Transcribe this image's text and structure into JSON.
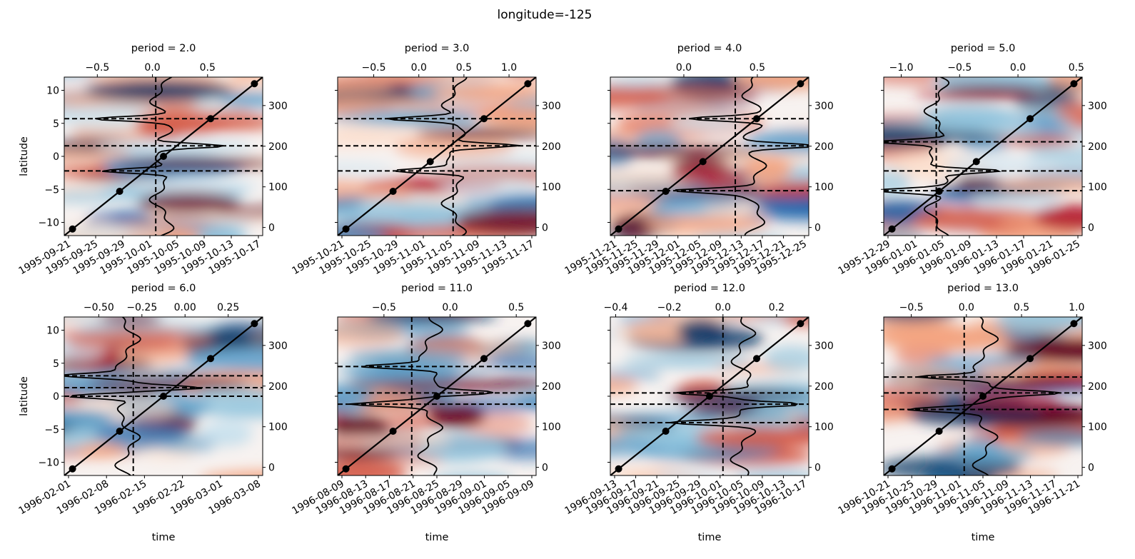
{
  "figure": {
    "suptitle": "longitude=-125",
    "rows": 2,
    "cols": 4,
    "colormap": "RdBu_r",
    "ylabel": "latitude",
    "xlabel": "time"
  },
  "chart_data": [
    {
      "type": "heatmap",
      "title": "period = 2.0",
      "x_ticklabels": [
        "1995-09-21",
        "1995-09-25",
        "1995-09-29",
        "1995-10-01",
        "1995-10-05",
        "1995-10-09",
        "1995-10-13",
        "1995-10-17"
      ],
      "top_ticklabels": [
        "−0.5",
        "0.0",
        "0.5"
      ],
      "top_xlim": [
        -0.8,
        1.0
      ],
      "left_ticklabels": [
        "−10",
        "−5",
        "0",
        "5",
        "10"
      ],
      "ylim": [
        -12,
        12
      ],
      "right_ticklabels": [
        "0",
        "100",
        "200",
        "300"
      ],
      "right_ylim": [
        -20,
        370
      ],
      "ylabel": "latitude",
      "xlabel": "",
      "hlines_lat": [
        5.7,
        1.6,
        -2.2
      ],
      "vline_top": 0.03,
      "markers_lat": [
        -11,
        -5.3,
        0,
        5.7,
        11
      ],
      "seed": 11
    },
    {
      "type": "heatmap",
      "title": "period = 3.0",
      "x_ticklabels": [
        "1995-10-21",
        "1995-10-25",
        "1995-10-29",
        "1995-11-01",
        "1995-11-05",
        "1995-11-09",
        "1995-11-13",
        "1995-11-17"
      ],
      "top_ticklabels": [
        "−0.5",
        "0.0",
        "0.5",
        "1.0"
      ],
      "top_xlim": [
        -0.9,
        1.3
      ],
      "left_ticklabels": [],
      "ylim": [
        -12,
        12
      ],
      "right_ticklabels": [
        "0",
        "100",
        "200",
        "300"
      ],
      "right_ylim": [
        -20,
        370
      ],
      "ylabel": "",
      "xlabel": "",
      "hlines_lat": [
        5.7,
        1.6,
        -2.2
      ],
      "vline_top": 0.38,
      "markers_lat": [
        -11,
        -5.3,
        -0.8,
        5.7,
        11
      ],
      "seed": 23
    },
    {
      "type": "heatmap",
      "title": "period = 4.0",
      "x_ticklabels": [
        "1995-11-21",
        "1995-11-25",
        "1995-11-29",
        "1995-12-01",
        "1995-12-05",
        "1995-12-09",
        "1995-12-13",
        "1995-12-17",
        "1995-12-21",
        "1995-12-25"
      ],
      "top_ticklabels": [
        "0.0",
        "0.5"
      ],
      "top_xlim": [
        -0.5,
        0.85
      ],
      "left_ticklabels": [],
      "ylim": [
        -12,
        12
      ],
      "right_ticklabels": [
        "0",
        "100",
        "200",
        "300"
      ],
      "right_ylim": [
        -20,
        370
      ],
      "ylabel": "",
      "xlabel": "",
      "hlines_lat": [
        5.7,
        1.6,
        -5.2
      ],
      "vline_top": 0.35,
      "markers_lat": [
        -11,
        -5.3,
        -0.8,
        5.7,
        11
      ],
      "seed": 37
    },
    {
      "type": "heatmap",
      "title": "period = 5.0",
      "x_ticklabels": [
        "1995-12-29",
        "1996-01-01",
        "1996-01-05",
        "1996-01-09",
        "1996-01-13",
        "1996-01-17",
        "1996-01-21",
        "1996-01-25"
      ],
      "top_ticklabels": [
        "−1.0",
        "−0.5",
        "0.0",
        "0.5"
      ],
      "top_xlim": [
        -1.15,
        0.55
      ],
      "left_ticklabels": [],
      "ylim": [
        -12,
        12
      ],
      "right_ticklabels": [
        "0",
        "100",
        "200",
        "300"
      ],
      "right_ylim": [
        -20,
        370
      ],
      "ylabel": "",
      "xlabel": "",
      "hlines_lat": [
        2.2,
        -2.2,
        -5.2
      ],
      "vline_top": -0.7,
      "markers_lat": [
        -11,
        -5.3,
        -0.8,
        5.7,
        11
      ],
      "seed": 41
    },
    {
      "type": "heatmap",
      "title": "period = 6.0",
      "x_ticklabels": [
        "1996-02-01",
        "1996-02-08",
        "1996-02-15",
        "1996-02-22",
        "1996-03-01",
        "1996-03-08"
      ],
      "top_ticklabels": [
        "−0.50",
        "−0.25",
        "0.00",
        "0.25"
      ],
      "top_xlim": [
        -0.7,
        0.45
      ],
      "left_ticklabels": [
        "−10",
        "−5",
        "0",
        "5",
        "10"
      ],
      "ylim": [
        -12,
        12
      ],
      "right_ticklabels": [
        "0",
        "100",
        "200",
        "300"
      ],
      "right_ylim": [
        -20,
        370
      ],
      "ylabel": "latitude",
      "xlabel": "time",
      "hlines_lat": [
        3.1,
        1.3,
        0
      ],
      "vline_top": -0.3,
      "markers_lat": [
        -11,
        -5.3,
        0,
        5.7,
        11
      ],
      "seed": 53
    },
    {
      "type": "heatmap",
      "title": "period = 11.0",
      "x_ticklabels": [
        "1996-08-09",
        "1996-08-13",
        "1996-08-17",
        "1996-08-21",
        "1996-08-25",
        "1996-08-29",
        "1996-09-01",
        "1996-09-05",
        "1996-09-09"
      ],
      "top_ticklabels": [
        "−0.5",
        "0.0",
        "0.5"
      ],
      "top_xlim": [
        -0.85,
        0.65
      ],
      "left_ticklabels": [],
      "ylim": [
        -12,
        12
      ],
      "right_ticklabels": [
        "0",
        "100",
        "200",
        "300"
      ],
      "right_ylim": [
        -20,
        370
      ],
      "ylabel": "",
      "xlabel": "time",
      "hlines_lat": [
        4.5,
        0.5,
        -1.2
      ],
      "vline_top": -0.29,
      "markers_lat": [
        -11,
        -5.3,
        0,
        5.7,
        11
      ],
      "seed": 67
    },
    {
      "type": "heatmap",
      "title": "period = 12.0",
      "x_ticklabels": [
        "1996-09-13",
        "1996-09-17",
        "1996-09-21",
        "1996-09-25",
        "1996-09-29",
        "1996-10-01",
        "1996-10-05",
        "1996-10-09",
        "1996-10-13",
        "1996-10-17"
      ],
      "top_ticklabels": [
        "−0.4",
        "−0.2",
        "0.0",
        "0.2"
      ],
      "top_xlim": [
        -0.42,
        0.32
      ],
      "left_ticklabels": [],
      "ylim": [
        -12,
        12
      ],
      "right_ticklabels": [
        "0",
        "100",
        "200",
        "300"
      ],
      "right_ylim": [
        -20,
        370
      ],
      "ylabel": "",
      "xlabel": "time",
      "hlines_lat": [
        0.5,
        -1.2,
        -4.0
      ],
      "vline_top": 0.0,
      "markers_lat": [
        -11,
        -5.3,
        0,
        5.7,
        11
      ],
      "seed": 79
    },
    {
      "type": "heatmap",
      "title": "period = 13.0",
      "x_ticklabels": [
        "1996-10-21",
        "1996-10-25",
        "1996-10-29",
        "1996-11-01",
        "1996-11-05",
        "1996-11-09",
        "1996-11-13",
        "1996-11-17",
        "1996-11-21"
      ],
      "top_ticklabels": [
        "−0.5",
        "0.0",
        "0.5",
        "1.0"
      ],
      "top_xlim": [
        -0.75,
        1.05
      ],
      "left_ticklabels": [],
      "ylim": [
        -12,
        12
      ],
      "right_ticklabels": [
        "0",
        "100",
        "200",
        "300"
      ],
      "right_ylim": [
        -20,
        370
      ],
      "ylabel": "",
      "xlabel": "time",
      "hlines_lat": [
        2.9,
        0.5,
        -2.0
      ],
      "vline_top": -0.02,
      "markers_lat": [
        -11,
        -5.3,
        0,
        5.7,
        11
      ],
      "seed": 97
    }
  ]
}
